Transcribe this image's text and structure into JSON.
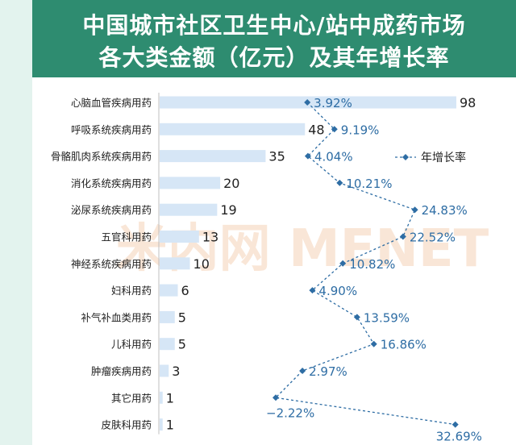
{
  "title_line1": "中国城市社区卫生中心/站中成药市场",
  "title_line2": "各大类金额（亿元）及其年增长率",
  "watermark": "米内网 MENET",
  "chart_data": {
    "type": "bar",
    "categories": [
      "心脑血管疾病用药",
      "呼吸系统疾病用药",
      "骨骼肌肉系统疾病用药",
      "消化系统疾病用药",
      "泌尿系统疾病用药",
      "五官科用药",
      "神经系统疾病用药",
      "妇科用药",
      "补气补血类用药",
      "儿科用药",
      "肿瘤疾病用药",
      "其它用药",
      "皮肤科用药"
    ],
    "values": [
      98,
      48,
      35,
      20,
      19,
      13,
      10,
      6,
      5,
      5,
      3,
      1,
      1
    ],
    "value_labels": [
      "98",
      "48",
      "35",
      "20",
      "19",
      "13",
      "10",
      "6",
      "5",
      "5",
      "3",
      "1",
      "1"
    ],
    "growth": [
      3.92,
      9.19,
      4.04,
      10.21,
      24.83,
      22.52,
      10.82,
      4.9,
      13.59,
      16.86,
      2.97,
      -2.22,
      32.69
    ],
    "growth_labels": [
      "3.92%",
      "9.19%",
      "4.04%",
      "10.21%",
      "24.83%",
      "22.52%",
      "10.82%",
      "4.90%",
      "13.59%",
      "16.86%",
      "2.97%",
      "−2.22%",
      "32.69%"
    ],
    "legend": "年增长率",
    "legend_position": "right",
    "bar_color": "#d6e6f6",
    "line_color": "#2e6da4"
  }
}
